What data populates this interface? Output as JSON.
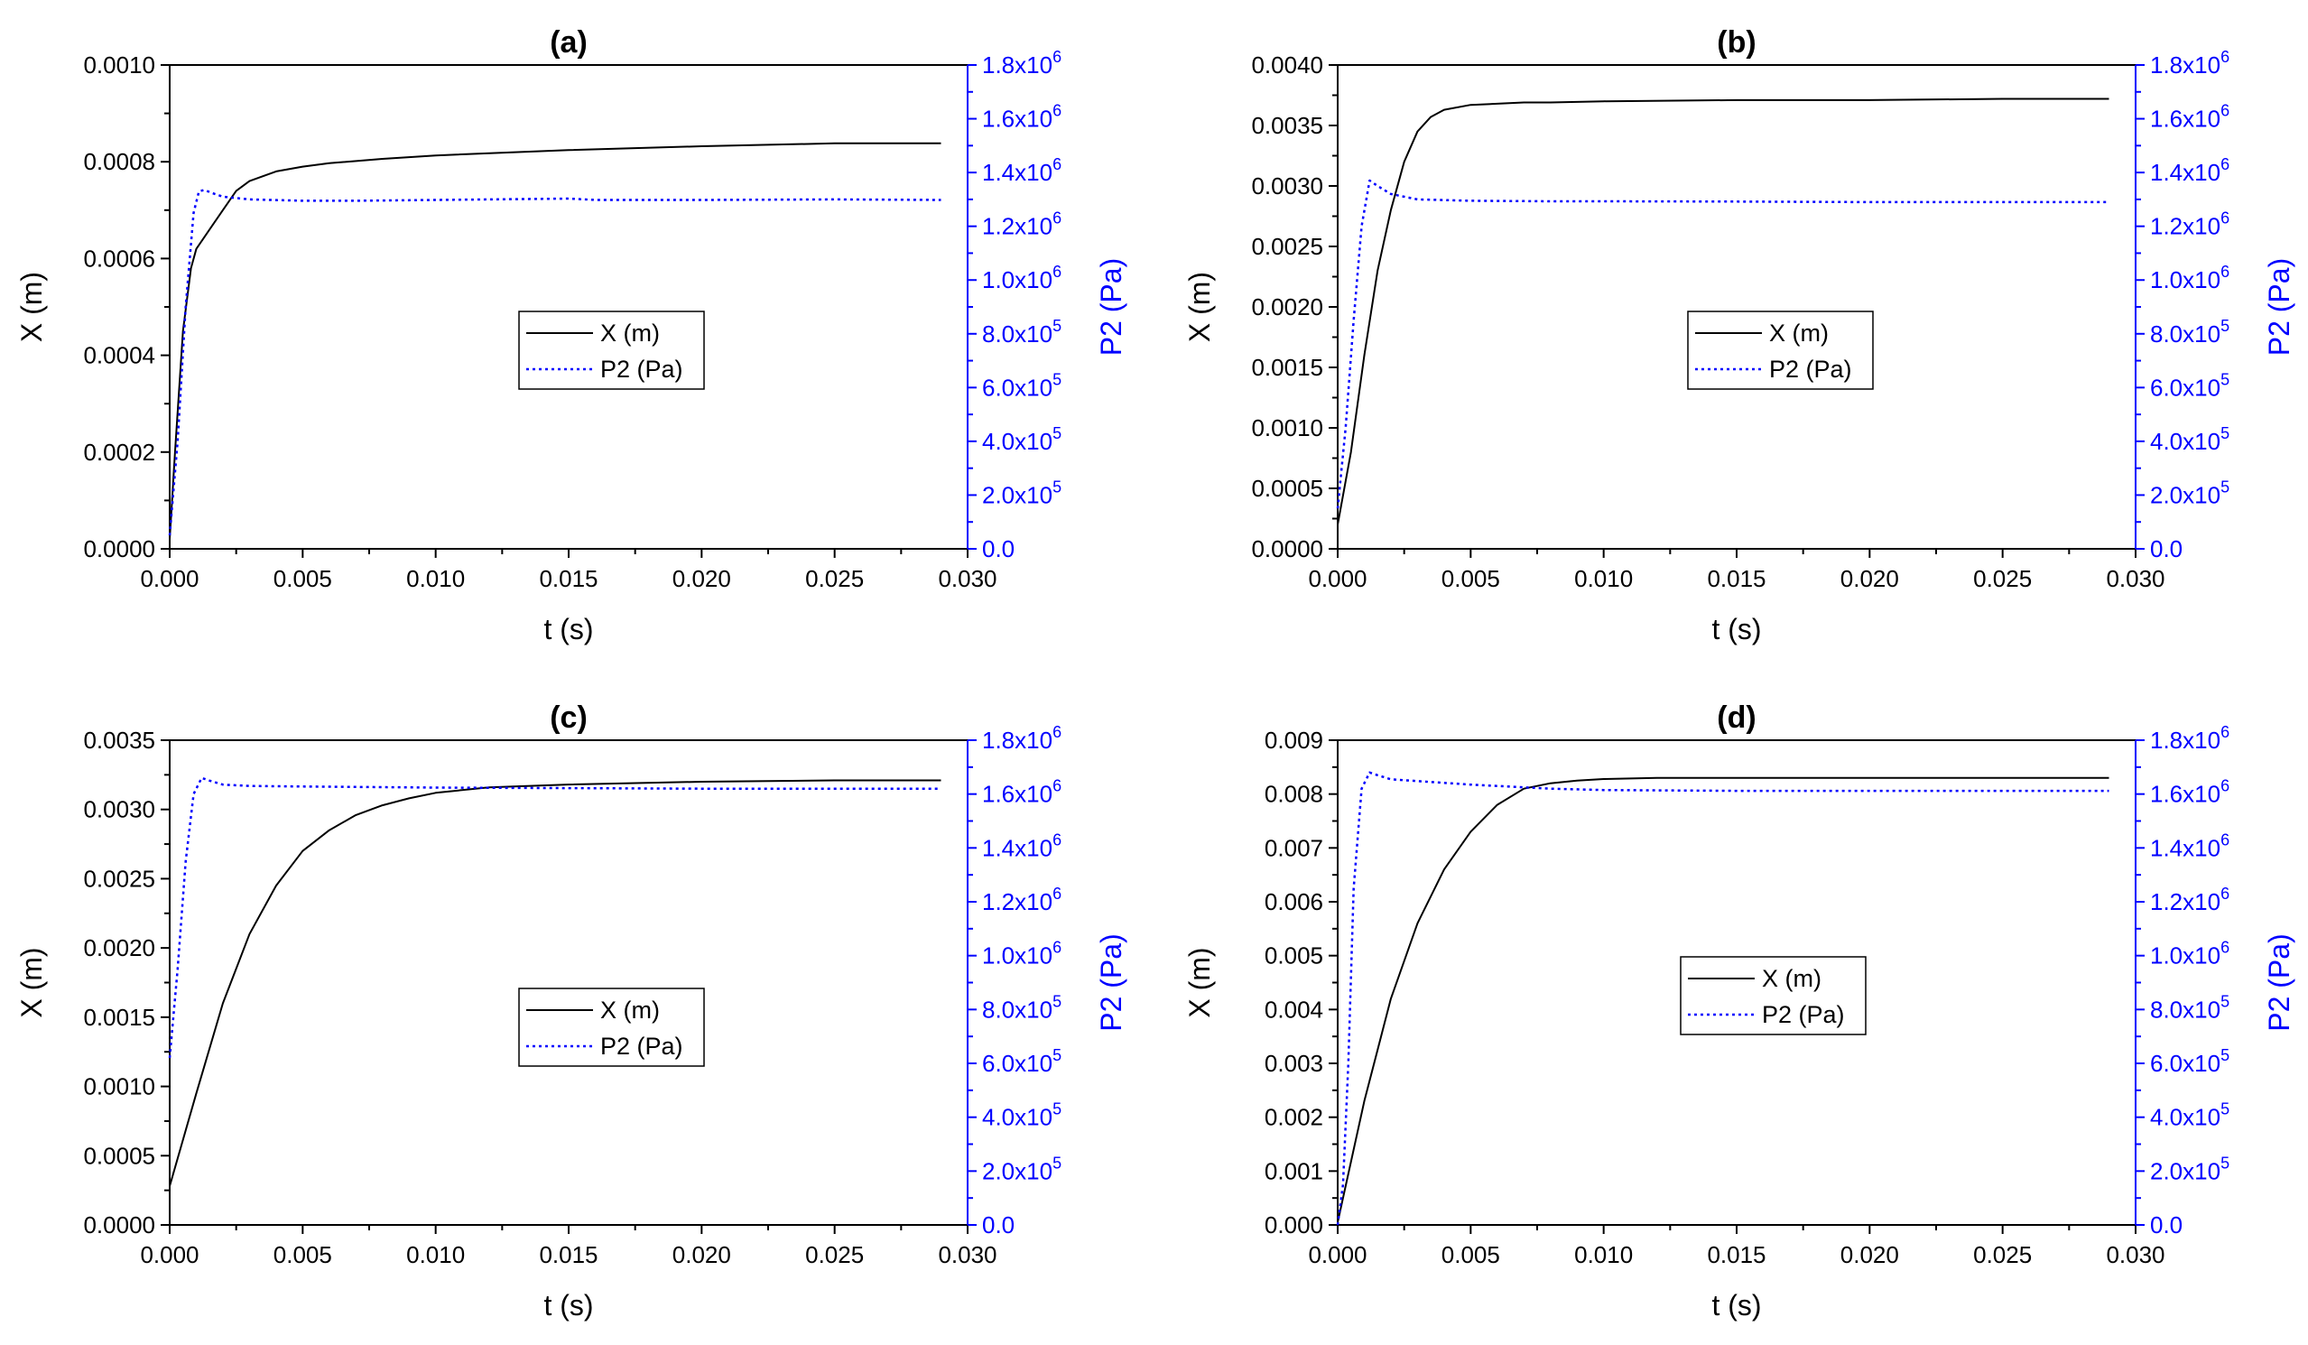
{
  "colors": {
    "x_series": "#000000",
    "p2_series": "#0000ff",
    "frame": "#000000",
    "right_axis": "#0000ff"
  },
  "chart_data": [
    {
      "panel": "a",
      "type": "line",
      "title": "(a)",
      "xlabel": "t (s)",
      "ylabel": "X (m)",
      "ylabel_right": "P2 (Pa)",
      "xlim": [
        0,
        0.03
      ],
      "ylim": [
        0,
        0.001
      ],
      "ylim_right": [
        0,
        1800000
      ],
      "x_ticks": [
        "0.000",
        "0.005",
        "0.010",
        "0.015",
        "0.020",
        "0.025",
        "0.030"
      ],
      "y_ticks": [
        "0.0000",
        "0.0002",
        "0.0004",
        "0.0006",
        "0.0008",
        "0.0010"
      ],
      "y_right_ticks": [
        {
          "m": "0.0",
          "e": ""
        },
        {
          "m": "2.0x10",
          "e": "5"
        },
        {
          "m": "4.0x10",
          "e": "5"
        },
        {
          "m": "6.0x10",
          "e": "5"
        },
        {
          "m": "8.0x10",
          "e": "5"
        },
        {
          "m": "1.0x10",
          "e": "6"
        },
        {
          "m": "1.2x10",
          "e": "6"
        },
        {
          "m": "1.4x10",
          "e": "6"
        },
        {
          "m": "1.6x10",
          "e": "6"
        },
        {
          "m": "1.8x10",
          "e": "6"
        }
      ],
      "legend": [
        "X (m)",
        "P2 (Pa)"
      ],
      "legend_position": "center",
      "series": [
        {
          "name": "X (m)",
          "axis": "left",
          "style": "solid",
          "x": [
            0,
            0.0002,
            0.0005,
            0.0008,
            0.001,
            0.0015,
            0.002,
            0.0025,
            0.003,
            0.004,
            0.005,
            0.006,
            0.008,
            0.01,
            0.015,
            0.02,
            0.025,
            0.029
          ],
          "y": [
            2e-05,
            0.0002,
            0.00045,
            0.00058,
            0.00062,
            0.00066,
            0.0007,
            0.00074,
            0.00076,
            0.00078,
            0.00079,
            0.000797,
            0.000806,
            0.000813,
            0.000824,
            0.000832,
            0.000838,
            0.000838
          ]
        },
        {
          "name": "P2 (Pa)",
          "axis": "right",
          "style": "dotted",
          "x": [
            0,
            0.0003,
            0.0006,
            0.0009,
            0.0011,
            0.0013,
            0.0017,
            0.002,
            0.003,
            0.005,
            0.007,
            0.01,
            0.015,
            0.016,
            0.02,
            0.025,
            0.029
          ],
          "y": [
            50000,
            400000,
            900000,
            1250000,
            1330000,
            1335000,
            1320000,
            1310000,
            1300000,
            1295000,
            1295000,
            1298000,
            1303000,
            1298000,
            1298000,
            1300000,
            1298000
          ]
        }
      ]
    },
    {
      "panel": "b",
      "type": "line",
      "title": "(b)",
      "xlabel": "t (s)",
      "ylabel": "X (m)",
      "ylabel_right": "P2 (Pa)",
      "xlim": [
        0,
        0.03
      ],
      "ylim": [
        0,
        0.004
      ],
      "ylim_right": [
        0,
        1800000
      ],
      "x_ticks": [
        "0.000",
        "0.005",
        "0.010",
        "0.015",
        "0.020",
        "0.025",
        "0.030"
      ],
      "y_ticks": [
        "0.0000",
        "0.0005",
        "0.0010",
        "0.0015",
        "0.0020",
        "0.0025",
        "0.0030",
        "0.0035",
        "0.0040"
      ],
      "y_right_ticks": [
        {
          "m": "0.0",
          "e": ""
        },
        {
          "m": "2.0x10",
          "e": "5"
        },
        {
          "m": "4.0x10",
          "e": "5"
        },
        {
          "m": "6.0x10",
          "e": "5"
        },
        {
          "m": "8.0x10",
          "e": "5"
        },
        {
          "m": "1.0x10",
          "e": "6"
        },
        {
          "m": "1.2x10",
          "e": "6"
        },
        {
          "m": "1.4x10",
          "e": "6"
        },
        {
          "m": "1.6x10",
          "e": "6"
        },
        {
          "m": "1.8x10",
          "e": "6"
        }
      ],
      "legend": [
        "X (m)",
        "P2 (Pa)"
      ],
      "legend_position": "center",
      "series": [
        {
          "name": "X (m)",
          "axis": "left",
          "style": "solid",
          "x": [
            0,
            0.0005,
            0.001,
            0.0015,
            0.002,
            0.0025,
            0.003,
            0.0035,
            0.004,
            0.005,
            0.006,
            0.007,
            0.008,
            0.01,
            0.015,
            0.02,
            0.025,
            0.029
          ],
          "y": [
            0.0002,
            0.0008,
            0.0016,
            0.0023,
            0.0028,
            0.0032,
            0.00345,
            0.00357,
            0.00363,
            0.00367,
            0.00368,
            0.00369,
            0.00369,
            0.0037,
            0.00371,
            0.00371,
            0.00372,
            0.00372
          ]
        },
        {
          "name": "P2 (Pa)",
          "axis": "right",
          "style": "dotted",
          "x": [
            0,
            0.0003,
            0.0006,
            0.0009,
            0.0012,
            0.0015,
            0.002,
            0.003,
            0.005,
            0.008,
            0.01,
            0.015,
            0.02,
            0.025,
            0.029
          ],
          "y": [
            150000,
            450000,
            850000,
            1200000,
            1370000,
            1350000,
            1320000,
            1300000,
            1295000,
            1293000,
            1293000,
            1292000,
            1290000,
            1290000,
            1290000
          ]
        }
      ]
    },
    {
      "panel": "c",
      "type": "line",
      "title": "(c)",
      "xlabel": "t (s)",
      "ylabel": "X (m)",
      "ylabel_right": "P2 (Pa)",
      "xlim": [
        0,
        0.03
      ],
      "ylim": [
        0,
        0.0035
      ],
      "ylim_right": [
        0,
        1800000
      ],
      "x_ticks": [
        "0.000",
        "0.005",
        "0.010",
        "0.015",
        "0.020",
        "0.025",
        "0.030"
      ],
      "y_ticks": [
        "0.0000",
        "0.0005",
        "0.0010",
        "0.0015",
        "0.0020",
        "0.0025",
        "0.0030",
        "0.0035"
      ],
      "y_right_ticks": [
        {
          "m": "0.0",
          "e": ""
        },
        {
          "m": "2.0x10",
          "e": "5"
        },
        {
          "m": "4.0x10",
          "e": "5"
        },
        {
          "m": "6.0x10",
          "e": "5"
        },
        {
          "m": "8.0x10",
          "e": "5"
        },
        {
          "m": "1.0x10",
          "e": "6"
        },
        {
          "m": "1.2x10",
          "e": "6"
        },
        {
          "m": "1.4x10",
          "e": "6"
        },
        {
          "m": "1.6x10",
          "e": "6"
        },
        {
          "m": "1.8x10",
          "e": "6"
        }
      ],
      "legend": [
        "X (m)",
        "P2 (Pa)"
      ],
      "legend_position": "center",
      "series": [
        {
          "name": "X (m)",
          "axis": "left",
          "style": "solid",
          "x": [
            0,
            0.001,
            0.002,
            0.003,
            0.004,
            0.005,
            0.006,
            0.007,
            0.008,
            0.009,
            0.01,
            0.012,
            0.015,
            0.02,
            0.025,
            0.029
          ],
          "y": [
            0.00028,
            0.00095,
            0.0016,
            0.0021,
            0.00245,
            0.0027,
            0.00285,
            0.00296,
            0.00303,
            0.00308,
            0.00312,
            0.00316,
            0.00318,
            0.0032,
            0.00321,
            0.00321
          ]
        },
        {
          "name": "P2 (Pa)",
          "axis": "right",
          "style": "dotted",
          "x": [
            0,
            0.0003,
            0.0006,
            0.0009,
            0.0012,
            0.0015,
            0.002,
            0.003,
            0.005,
            0.01,
            0.015,
            0.02,
            0.025,
            0.029
          ],
          "y": [
            620000,
            950000,
            1350000,
            1600000,
            1660000,
            1650000,
            1635000,
            1630000,
            1628000,
            1624000,
            1622000,
            1620000,
            1620000,
            1620000
          ]
        }
      ]
    },
    {
      "panel": "d",
      "type": "line",
      "title": "(d)",
      "xlabel": "t (s)",
      "ylabel": "X (m)",
      "ylabel_right": "P2 (Pa)",
      "xlim": [
        0,
        0.03
      ],
      "ylim": [
        0,
        0.009
      ],
      "ylim_right": [
        0,
        1800000
      ],
      "x_ticks": [
        "0.000",
        "0.005",
        "0.010",
        "0.015",
        "0.020",
        "0.025",
        "0.030"
      ],
      "y_ticks": [
        "0.000",
        "0.001",
        "0.002",
        "0.003",
        "0.004",
        "0.005",
        "0.006",
        "0.007",
        "0.008",
        "0.009"
      ],
      "y_right_ticks": [
        {
          "m": "0.0",
          "e": ""
        },
        {
          "m": "2.0x10",
          "e": "5"
        },
        {
          "m": "4.0x10",
          "e": "5"
        },
        {
          "m": "6.0x10",
          "e": "5"
        },
        {
          "m": "8.0x10",
          "e": "5"
        },
        {
          "m": "1.0x10",
          "e": "6"
        },
        {
          "m": "1.2x10",
          "e": "6"
        },
        {
          "m": "1.4x10",
          "e": "6"
        },
        {
          "m": "1.6x10",
          "e": "6"
        },
        {
          "m": "1.8x10",
          "e": "6"
        }
      ],
      "legend": [
        "X (m)",
        "P2 (Pa)"
      ],
      "legend_position": "center",
      "series": [
        {
          "name": "X (m)",
          "axis": "left",
          "style": "solid",
          "x": [
            0,
            0.001,
            0.002,
            0.003,
            0.004,
            0.005,
            0.006,
            0.007,
            0.008,
            0.009,
            0.01,
            0.012,
            0.015,
            0.02,
            0.025,
            0.029
          ],
          "y": [
            5e-05,
            0.0023,
            0.0042,
            0.0056,
            0.0066,
            0.0073,
            0.0078,
            0.0081,
            0.0082,
            0.00825,
            0.00828,
            0.0083,
            0.0083,
            0.0083,
            0.0083,
            0.0083
          ]
        },
        {
          "name": "P2 (Pa)",
          "axis": "right",
          "style": "dotted",
          "x": [
            0,
            0.0002,
            0.0004,
            0.0006,
            0.0009,
            0.0012,
            0.0015,
            0.002,
            0.003,
            0.005,
            0.008,
            0.01,
            0.015,
            0.02,
            0.025,
            0.029
          ],
          "y": [
            0,
            150000,
            600000,
            1250000,
            1620000,
            1680000,
            1670000,
            1655000,
            1648000,
            1635000,
            1620000,
            1615000,
            1612000,
            1612000,
            1612000,
            1612000
          ]
        }
      ]
    }
  ]
}
